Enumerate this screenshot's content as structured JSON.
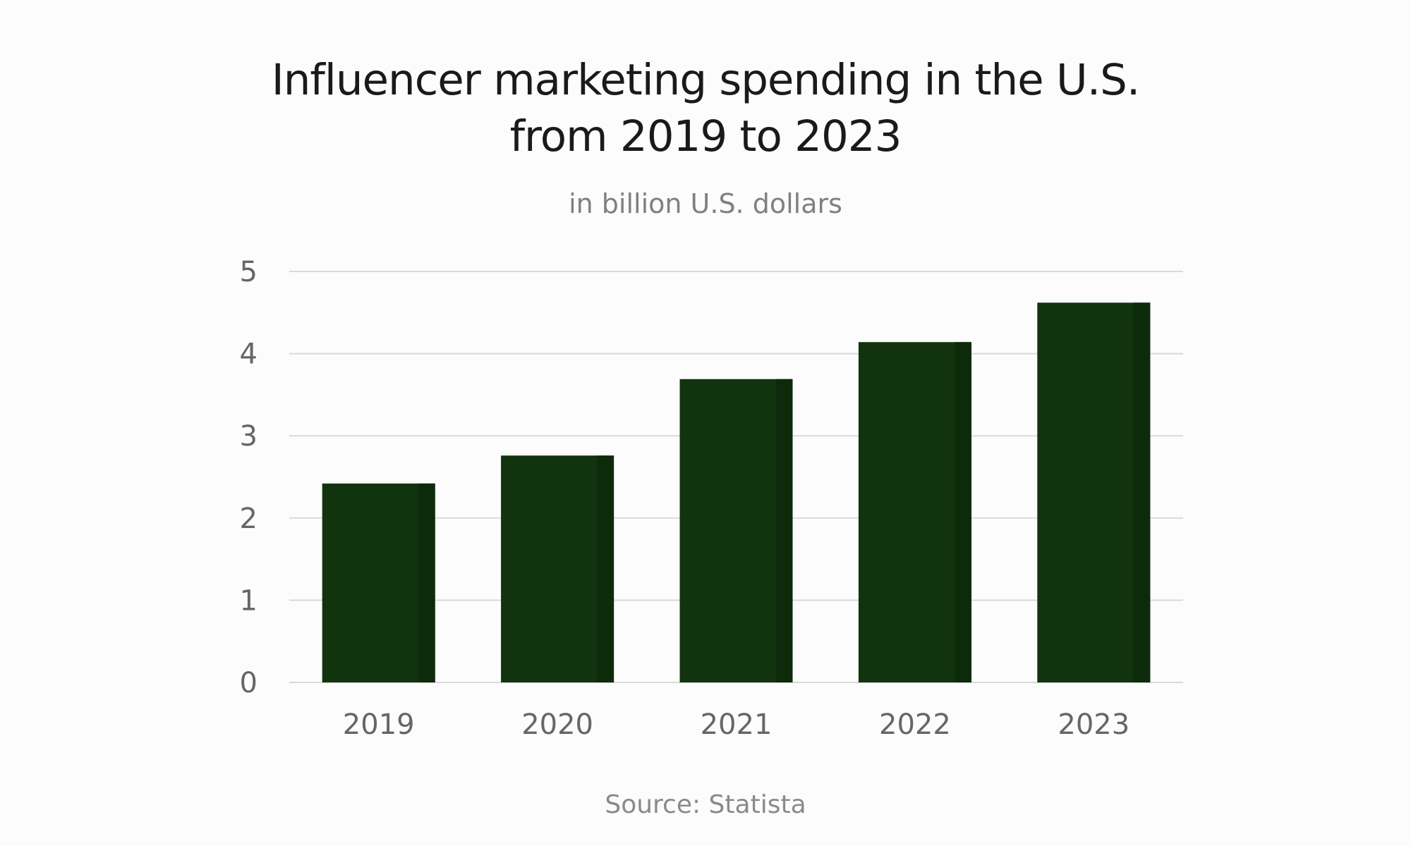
{
  "chart_data": {
    "type": "bar",
    "title_lines": [
      "Influencer marketing spending in the U.S.",
      "from 2019 to 2023"
    ],
    "subtitle": "in billion U.S. dollars",
    "source": "Source: Statista",
    "categories": [
      "2019",
      "2020",
      "2021",
      "2022",
      "2023"
    ],
    "values": [
      2.42,
      2.76,
      3.69,
      4.14,
      4.62
    ],
    "ylim": [
      0,
      5
    ],
    "yticks": [
      0,
      1,
      2,
      3,
      4,
      5
    ],
    "ytick_labels": [
      "0",
      "1",
      "2",
      "3",
      "4",
      "5"
    ],
    "grid": true,
    "legend": "none",
    "colors": {
      "bar": "#11340f",
      "bar_shade": "#0d2a0b",
      "grid": "#d9d9d9",
      "text": "#1a1a1a",
      "muted": "#808080"
    }
  }
}
